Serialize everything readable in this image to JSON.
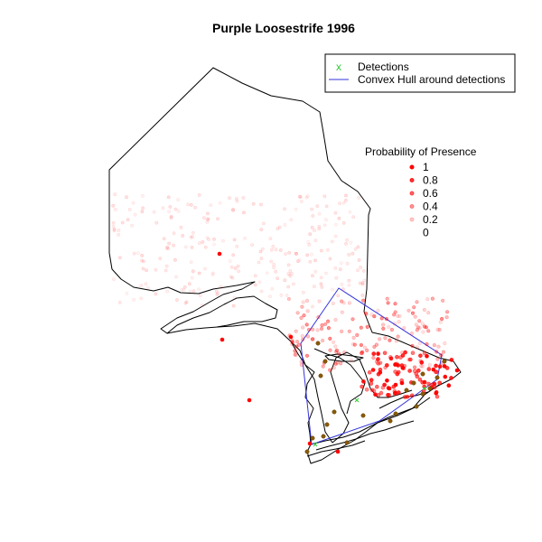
{
  "title": "Purple Loosestrife 1996",
  "legend_top": {
    "detections_label": "Detections",
    "detections_marker": "x",
    "hull_label": "Convex Hull around detections"
  },
  "legend_probability": {
    "title": "Probability of Presence",
    "levels": [
      {
        "label": "1",
        "value": 1.0
      },
      {
        "label": "0.8",
        "value": 0.8
      },
      {
        "label": "0.6",
        "value": 0.6
      },
      {
        "label": "0.4",
        "value": 0.4
      },
      {
        "label": "0.2",
        "value": 0.2
      },
      {
        "label": "0",
        "value": 0.0
      }
    ]
  },
  "colors": {
    "outline": "#000000",
    "hull": "#3333dd",
    "detection": "#33cc33",
    "presence": "#ff0000",
    "observed": "#8b5a00"
  }
}
